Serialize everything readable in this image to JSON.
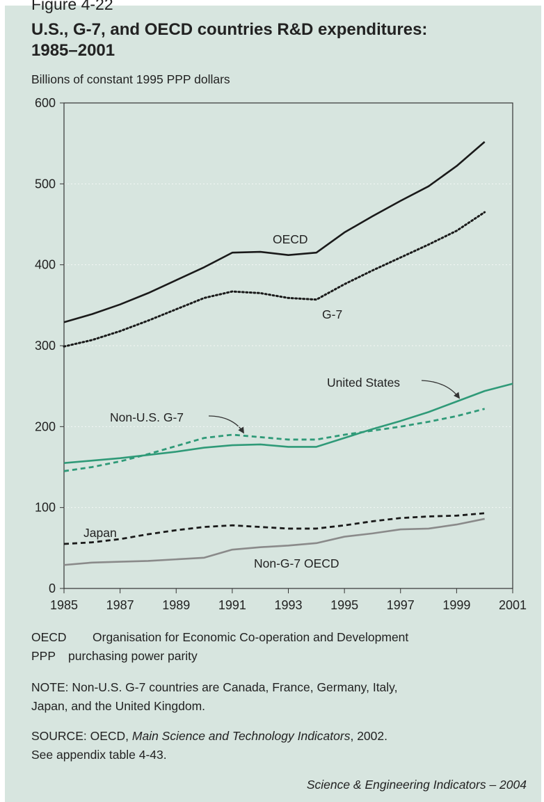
{
  "figure_label": "Figure 4-22",
  "chart_data": {
    "type": "line",
    "title": [
      "U.S., G-7, and OECD countries R&D expenditures:",
      "1985–2001"
    ],
    "subtitle": "Billions of constant 1995 PPP dollars",
    "x": [
      1985,
      1986,
      1987,
      1988,
      1989,
      1990,
      1991,
      1992,
      1993,
      1994,
      1995,
      1996,
      1997,
      1998,
      1999,
      2000,
      2001
    ],
    "xlim": [
      1985,
      2001
    ],
    "xticks": [
      1985,
      1987,
      1989,
      1991,
      1993,
      1995,
      1997,
      1999,
      2001
    ],
    "ylim": [
      0,
      600
    ],
    "yticks": [
      0,
      100,
      200,
      300,
      400,
      500,
      600
    ],
    "grid": true,
    "series": [
      {
        "name": "OECD",
        "color": "#1a1a1a",
        "style": "solid",
        "values": [
          329,
          339,
          351,
          365,
          381,
          397,
          415,
          416,
          412,
          415,
          440,
          460,
          479,
          497,
          522,
          552,
          null
        ]
      },
      {
        "name": "G-7",
        "color": "#1a1a1a",
        "style": "dotted",
        "values": [
          299,
          307,
          318,
          331,
          345,
          359,
          367,
          365,
          359,
          357,
          376,
          393,
          409,
          425,
          442,
          465,
          null
        ]
      },
      {
        "name": "United States",
        "color": "#2f9a78",
        "style": "solid",
        "values": [
          155,
          158,
          161,
          165,
          169,
          174,
          177,
          178,
          175,
          175,
          186,
          197,
          207,
          218,
          231,
          244,
          253
        ]
      },
      {
        "name": "Non-U.S. G-7",
        "color": "#2f9a78",
        "style": "dashed",
        "values": [
          145,
          150,
          157,
          166,
          176,
          186,
          190,
          187,
          184,
          184,
          190,
          195,
          200,
          206,
          213,
          222,
          null
        ]
      },
      {
        "name": "Japan",
        "color": "#1a1a1a",
        "style": "dashed",
        "values": [
          55,
          57,
          61,
          67,
          72,
          76,
          78,
          76,
          74,
          74,
          78,
          83,
          87,
          89,
          90,
          93,
          null
        ]
      },
      {
        "name": "Non-G-7 OECD",
        "color": "#8a8a8a",
        "style": "solid",
        "values": [
          29,
          32,
          33,
          34,
          36,
          38,
          48,
          51,
          53,
          56,
          64,
          68,
          73,
          74,
          79,
          86,
          null
        ]
      }
    ]
  },
  "abbreviations": [
    {
      "abbr": "OECD",
      "meaning": "Organisation for Economic Co-operation and Development"
    },
    {
      "abbr": "PPP",
      "meaning": "purchasing power parity"
    }
  ],
  "note": [
    "NOTE: Non-U.S. G-7 countries are Canada, France, Germany, Italy,",
    "Japan, and the United Kingdom."
  ],
  "source": {
    "prefix": "SOURCE: OECD, ",
    "title": "Main Science and Technology Indicators",
    "suffix": ", 2002.",
    "line2": "See appendix table 4-43."
  },
  "credit": "Science & Engineering Indicators – 2004"
}
